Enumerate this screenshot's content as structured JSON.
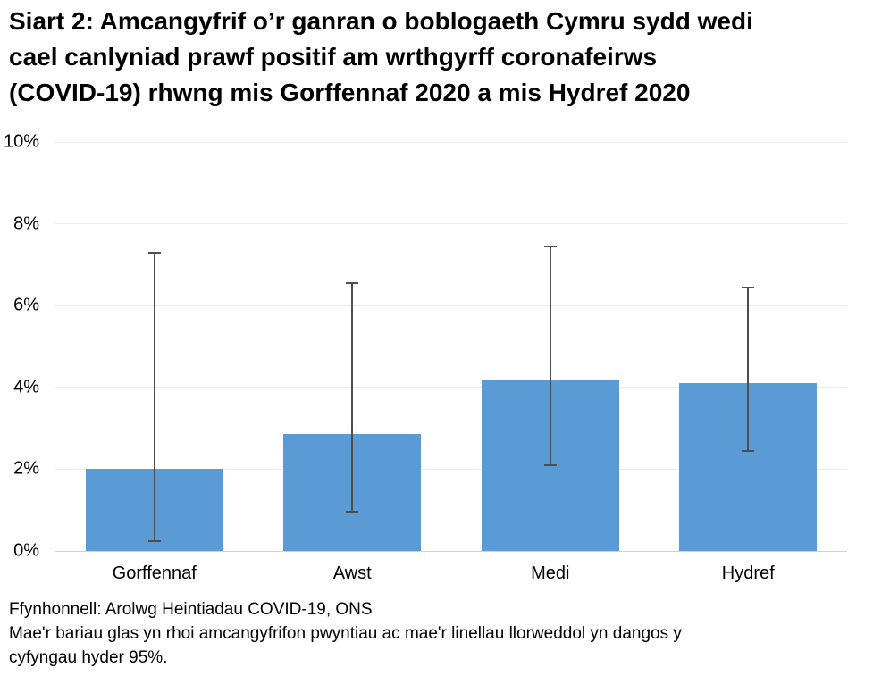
{
  "title": {
    "lines": [
      "Siart 2: Amcangyfrif o’r ganran o boblogaeth Cymru sydd wedi",
      "cael canlyniad prawf positif am wrthgyrff coronafeirws",
      "(COVID-19) rhwng mis Gorffennaf 2020 a mis Hydref 2020"
    ]
  },
  "chart_data": {
    "type": "bar",
    "categories": [
      "Gorffennaf",
      "Awst",
      "Medi",
      "Hydref"
    ],
    "values": [
      2.0,
      2.85,
      4.2,
      4.1
    ],
    "error_bars": {
      "low": [
        0.25,
        0.95,
        2.1,
        2.45
      ],
      "high": [
        7.3,
        6.55,
        7.45,
        6.45
      ],
      "meaning": "cyfyngau hyder 95%"
    },
    "title": "Siart 2: Amcangyfrif o’r ganran o boblogaeth Cymru sydd wedi cael canlyniad prawf positif am wrthgyrff coronafeirws (COVID-19) rhwng mis Gorffennaf 2020 a mis Hydref 2020",
    "xlabel": "",
    "ylabel": "",
    "ylim": [
      0,
      10
    ],
    "ytick_step": 2,
    "ytick_labels": [
      "0%",
      "2%",
      "4%",
      "6%",
      "8%",
      "10%"
    ],
    "grid": true,
    "legend": "none",
    "colors": {
      "bar": "#5B9BD5",
      "error_bar": "#4D4D4D",
      "gridline": "#EBEBEB",
      "baseline": "#D2D2D2"
    }
  },
  "footer": {
    "source": "Ffynhonnell: Arolwg Heintiadau COVID-19, ONS",
    "note_lines": [
      "Mae'r bariau glas yn rhoi amcangyfrifon pwyntiau ac mae'r linellau llorweddol yn dangos y",
      "cyfyngau hyder 95%."
    ]
  }
}
